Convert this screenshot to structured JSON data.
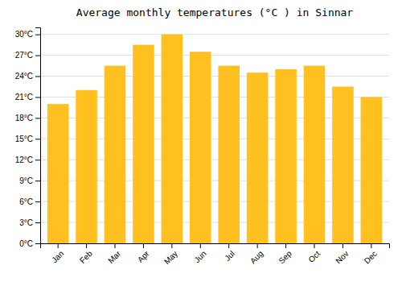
{
  "chart_data": {
    "type": "bar",
    "title": "Average monthly temperatures (°C ) in Sinnar",
    "categories": [
      "Jan",
      "Feb",
      "Mar",
      "Apr",
      "May",
      "Jun",
      "Jul",
      "Aug",
      "Sep",
      "Oct",
      "Nov",
      "Dec"
    ],
    "values": [
      20,
      22,
      25.5,
      28.5,
      30,
      27.5,
      25.5,
      24.5,
      25,
      25.5,
      22.5,
      21
    ],
    "color": "#FFC020",
    "ylim": [
      0,
      31
    ],
    "yticks": [
      {
        "value": 0,
        "label": "0°C"
      },
      {
        "value": 3,
        "label": "3°C"
      },
      {
        "value": 6,
        "label": "6°C"
      },
      {
        "value": 9,
        "label": "9°C"
      },
      {
        "value": 12,
        "label": "12°C"
      },
      {
        "value": 15,
        "label": "15°C"
      },
      {
        "value": 18,
        "label": "18°C"
      },
      {
        "value": 21,
        "label": "21°C"
      },
      {
        "value": 24,
        "label": "24°C"
      },
      {
        "value": 27,
        "label": "27°C"
      },
      {
        "value": 30,
        "label": "30°C"
      }
    ],
    "grid": true
  }
}
